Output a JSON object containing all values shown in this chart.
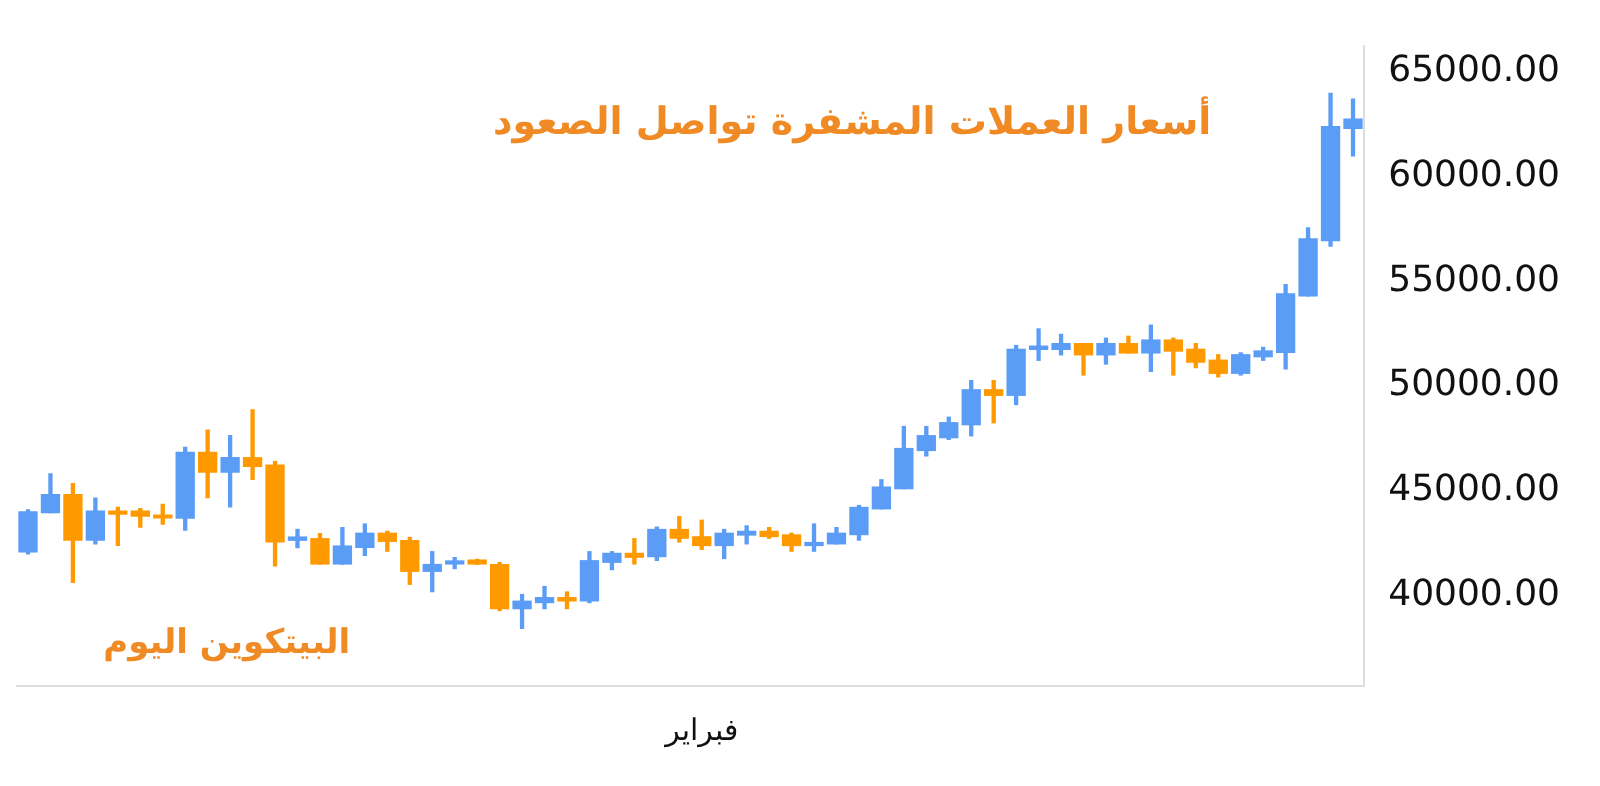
{
  "chart_data": {
    "type": "candlestick",
    "title": "أسعار العملات المشفرة تواصل الصعود",
    "subtitle": "البيتكوين اليوم",
    "categories": [
      null,
      null,
      null,
      null,
      null,
      null,
      null,
      null,
      null,
      null,
      null,
      null,
      null,
      null,
      null,
      null,
      null,
      null,
      null,
      null,
      null,
      null,
      null,
      null,
      null,
      null,
      null,
      null,
      null,
      null,
      "فبراير",
      null,
      null,
      null,
      null,
      null,
      null,
      null,
      null,
      null,
      null,
      null,
      null,
      null,
      null,
      null,
      null,
      null,
      null,
      null,
      null,
      null,
      null,
      null,
      null,
      null,
      null,
      null,
      null,
      null
    ],
    "ohlc": [
      [
        42100,
        44100,
        42000,
        44000
      ],
      [
        43970,
        45815,
        43970,
        44825
      ],
      [
        44825,
        45350,
        40640,
        42660
      ],
      [
        42660,
        44650,
        42480,
        44035
      ],
      [
        44035,
        44210,
        42400,
        43900
      ],
      [
        44035,
        44150,
        43270,
        43800
      ],
      [
        43850,
        44360,
        43420,
        43720
      ],
      [
        43710,
        47080,
        43130,
        46840
      ],
      [
        46840,
        47900,
        44680,
        45900
      ],
      [
        45900,
        47630,
        44240,
        46580
      ],
      [
        46580,
        48860,
        45550,
        46170
      ],
      [
        46230,
        46400,
        41430,
        42570
      ],
      [
        42650,
        43160,
        42300,
        42800
      ],
      [
        42720,
        42960,
        41520,
        41520
      ],
      [
        41520,
        43250,
        41520,
        42370
      ],
      [
        42310,
        43420,
        41930,
        42980
      ],
      [
        42980,
        43070,
        42130,
        42600
      ],
      [
        42630,
        42780,
        40550,
        41170
      ],
      [
        41170,
        42100,
        40200,
        41490
      ],
      [
        41520,
        41820,
        41300,
        41660
      ],
      [
        41700,
        41730,
        41500,
        41520
      ],
      [
        41490,
        41580,
        39300,
        39390
      ],
      [
        39390,
        40060,
        38450,
        39740
      ],
      [
        39680,
        40440,
        39390,
        39910
      ],
      [
        39910,
        40180,
        39390,
        39760
      ],
      [
        39760,
        42100,
        39680,
        41670
      ],
      [
        41600,
        42100,
        41250,
        42020
      ],
      [
        42020,
        42720,
        41520,
        41840
      ],
      [
        41870,
        43270,
        41690,
        43160
      ],
      [
        43160,
        43770,
        42570,
        42750
      ],
      [
        42810,
        43600,
        42220,
        42400
      ],
      [
        42400,
        43160,
        41780,
        42980
      ],
      [
        42900,
        43330,
        42480,
        43070
      ],
      [
        43070,
        43250,
        42750,
        42830
      ],
      [
        42900,
        42980,
        42130,
        42400
      ],
      [
        42400,
        43420,
        42130,
        42540
      ],
      [
        42480,
        43250,
        42480,
        42980
      ],
      [
        42920,
        44300,
        42660,
        44210
      ],
      [
        44150,
        45530,
        44150,
        45180
      ],
      [
        45110,
        48070,
        45110,
        47020
      ],
      [
        46930,
        48070,
        46670,
        47630
      ],
      [
        47540,
        48510,
        47460,
        48250
      ],
      [
        48160,
        50260,
        47630,
        49820
      ],
      [
        49820,
        50260,
        48250,
        49560
      ],
      [
        49560,
        51930,
        49120,
        51750
      ],
      [
        51750,
        52720,
        51230,
        51900
      ],
      [
        51750,
        52460,
        51490,
        52020
      ],
      [
        52020,
        52020,
        50530,
        51490
      ],
      [
        51490,
        52280,
        51050,
        52020
      ],
      [
        52020,
        52370,
        51580,
        51580
      ],
      [
        51580,
        52900,
        50700,
        52190
      ],
      [
        52190,
        52280,
        50530,
        51670
      ],
      [
        51750,
        52020,
        50880,
        51140
      ],
      [
        51230,
        51490,
        50440,
        50610
      ],
      [
        50610,
        51580,
        50530,
        51490
      ],
      [
        51400,
        51840,
        51230,
        51670
      ],
      [
        51610,
        54830,
        50820,
        54390
      ],
      [
        54300,
        57540,
        54300,
        57020
      ],
      [
        56930,
        63950,
        56670,
        62370
      ],
      [
        62280,
        63680,
        60970,
        62720
      ]
    ],
    "colors": [
      "#5b9cf6",
      "#5b9cf6",
      "#ff9900",
      "#5b9cf6",
      "#ff9900",
      "#ff9900",
      "#ff9900",
      "#5b9cf6",
      "#ff9900",
      "#5b9cf6",
      "#ff9900",
      "#ff9900",
      "#5b9cf6",
      "#ff9900",
      "#5b9cf6",
      "#5b9cf6",
      "#ff9900",
      "#ff9900",
      "#5b9cf6",
      "#5b9cf6",
      "#ff9900",
      "#ff9900",
      "#5b9cf6",
      "#5b9cf6",
      "#ff9900",
      "#5b9cf6",
      "#5b9cf6",
      "#ff9900",
      "#5b9cf6",
      "#ff9900",
      "#ff9900",
      "#5b9cf6",
      "#5b9cf6",
      "#ff9900",
      "#ff9900",
      "#5b9cf6",
      "#5b9cf6",
      "#5b9cf6",
      "#5b9cf6",
      "#5b9cf6",
      "#5b9cf6",
      "#5b9cf6",
      "#5b9cf6",
      "#ff9900",
      "#5b9cf6",
      "#5b9cf6",
      "#5b9cf6",
      "#ff9900",
      "#5b9cf6",
      "#ff9900",
      "#5b9cf6",
      "#ff9900",
      "#ff9900",
      "#ff9900",
      "#5b9cf6",
      "#5b9cf6",
      "#5b9cf6",
      "#5b9cf6",
      "#5b9cf6",
      "#5b9cf6"
    ],
    "ylim": [
      35700,
      66230
    ],
    "yticks": [
      {
        "value": 40000,
        "label": "40000.00"
      },
      {
        "value": 45000,
        "label": "45000.00"
      },
      {
        "value": 50000,
        "label": "50000.00"
      },
      {
        "value": 55000,
        "label": "55000.00"
      },
      {
        "value": 60000,
        "label": "60000.00"
      },
      {
        "value": 65000,
        "label": "65000.00"
      }
    ]
  }
}
